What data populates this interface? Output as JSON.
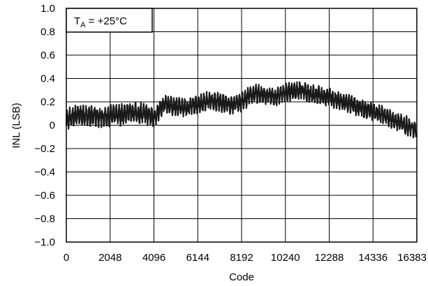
{
  "chart_data": {
    "type": "line",
    "title": "",
    "xlabel": "Code",
    "ylabel": "INL (LSB)",
    "xlim": [
      0,
      16383
    ],
    "ylim": [
      -1.0,
      1.0
    ],
    "x_ticks": [
      0,
      2048,
      4096,
      6144,
      8192,
      10240,
      12288,
      14336,
      16383
    ],
    "x_tick_labels": [
      "0",
      "2048",
      "4096",
      "6144",
      "8192",
      "10240",
      "12288",
      "14336",
      "16383"
    ],
    "y_ticks": [
      1.0,
      0.8,
      0.6,
      0.4,
      0.2,
      0,
      -0.2,
      -0.4,
      -0.6,
      -0.8,
      -1.0
    ],
    "y_tick_labels": [
      "1.0",
      "0.8",
      "0.6",
      "0.4",
      "0.2",
      "0",
      "−0.2",
      "−0.4",
      "−0.6",
      "−0.8",
      "−1.0"
    ],
    "grid": true,
    "annotation": {
      "symbol": "T",
      "subscript": "A",
      "text": " = +25°C"
    },
    "series": [
      {
        "color": "#1a1a1a",
        "envelope": {
          "x": [
            0,
            512,
            1024,
            1536,
            2048,
            2560,
            3072,
            3584,
            4096,
            4608,
            5120,
            5632,
            6144,
            6656,
            7168,
            7680,
            8192,
            8704,
            9216,
            9728,
            10240,
            10752,
            11264,
            11776,
            12288,
            12800,
            13312,
            13824,
            14336,
            14848,
            15360,
            15872,
            16383
          ],
          "center": [
            0.04,
            0.09,
            0.08,
            0.07,
            0.08,
            0.09,
            0.11,
            0.1,
            0.07,
            0.18,
            0.16,
            0.15,
            0.18,
            0.21,
            0.2,
            0.17,
            0.2,
            0.27,
            0.26,
            0.24,
            0.28,
            0.3,
            0.28,
            0.26,
            0.24,
            0.2,
            0.18,
            0.14,
            0.12,
            0.08,
            0.04,
            0.0,
            -0.04
          ],
          "amplitude": [
            0.09,
            0.08,
            0.08,
            0.08,
            0.08,
            0.08,
            0.08,
            0.08,
            0.08,
            0.07,
            0.07,
            0.07,
            0.07,
            0.07,
            0.07,
            0.07,
            0.07,
            0.07,
            0.07,
            0.07,
            0.07,
            0.07,
            0.07,
            0.07,
            0.07,
            0.07,
            0.07,
            0.07,
            0.07,
            0.07,
            0.07,
            0.07,
            0.07
          ]
        }
      }
    ]
  }
}
